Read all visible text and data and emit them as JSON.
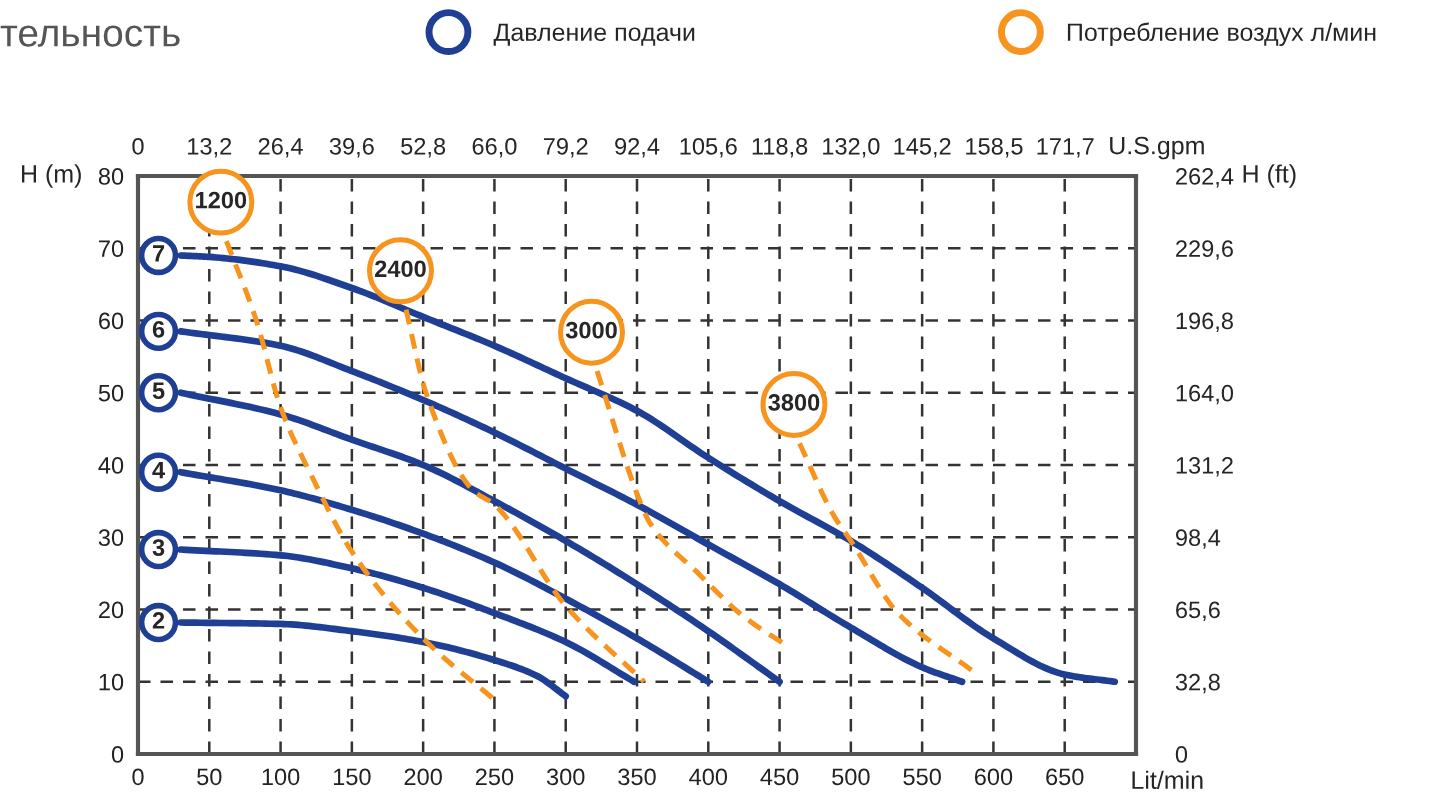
{
  "chart_data": {
    "type": "line",
    "title": "тельность",
    "xlabel": "Lit/min",
    "ylabel": "H (m)",
    "y2label": "H (ft)",
    "x2label": "U.S.gpm",
    "xlim": [
      0,
      700
    ],
    "xticks": [
      0,
      50,
      100,
      150,
      200,
      250,
      300,
      350,
      400,
      450,
      500,
      550,
      600,
      650
    ],
    "ylim": [
      0,
      80
    ],
    "yticks": [
      0,
      10,
      20,
      30,
      40,
      50,
      60,
      70,
      80
    ],
    "x2lim": [
      0,
      184.8
    ],
    "x2ticks": [
      0,
      {
        "value": 13.2,
        "label": "13,2"
      },
      {
        "value": 26.4,
        "label": "26,4"
      },
      {
        "value": 39.6,
        "label": "39,6"
      },
      {
        "value": 52.8,
        "label": "52,8"
      },
      {
        "value": 66.0,
        "label": "66,0"
      },
      {
        "value": 79.2,
        "label": "79,2"
      },
      {
        "value": 92.4,
        "label": "92,4"
      },
      {
        "value": 105.6,
        "label": "105,6"
      },
      {
        "value": 118.8,
        "label": "118,8"
      },
      {
        "value": 132.0,
        "label": "132,0"
      },
      {
        "value": 145.2,
        "label": "145,2"
      },
      {
        "value": 158.5,
        "label": "158,5"
      },
      {
        "value": 171.7,
        "label": "171,7"
      }
    ],
    "y2lim": [
      0,
      262.4
    ],
    "y2ticks": [
      0,
      {
        "value": 32.8,
        "label": "32,8"
      },
      {
        "value": 65.6,
        "label": "65,6"
      },
      {
        "value": 98.4,
        "label": "98,4"
      },
      {
        "value": 131.2,
        "label": "131,2"
      },
      {
        "value": 164.0,
        "label": "164,0"
      },
      {
        "value": 196.8,
        "label": "196,8"
      },
      {
        "value": 229.6,
        "label": "229,6"
      },
      {
        "value": 262.4,
        "label": "262,4"
      }
    ],
    "grid": true,
    "legend": "top",
    "marker": "none",
    "annotations": [
      "Давление подачи",
      "Потребление воздух л/мин"
    ],
    "series": [
      {
        "name": "7",
        "color": "#1f3f94",
        "line_style": "solid",
        "x": [
          30,
          50,
          100,
          150,
          200,
          250,
          300,
          350,
          400,
          450,
          500,
          550,
          600,
          650,
          685
        ],
        "values": [
          69,
          68.8,
          67.5,
          64.5,
          60.5,
          56.5,
          52,
          47.5,
          41,
          35,
          29.5,
          23,
          16,
          11,
          10
        ]
      },
      {
        "name": "6",
        "color": "#1f3f94",
        "line_style": "solid",
        "x": [
          30,
          100,
          150,
          200,
          250,
          300,
          350,
          400,
          450,
          500,
          550,
          578
        ],
        "values": [
          58.5,
          56.5,
          53,
          49,
          44.5,
          39.5,
          34.5,
          29,
          23.5,
          17.5,
          12,
          10
        ]
      },
      {
        "name": "5",
        "color": "#1f3f94",
        "line_style": "solid",
        "x": [
          30,
          100,
          150,
          200,
          250,
          300,
          350,
          400,
          450
        ],
        "values": [
          50,
          47,
          43.5,
          40,
          35,
          29.5,
          23.5,
          17,
          10
        ]
      },
      {
        "name": "4",
        "color": "#1f3f94",
        "line_style": "solid",
        "x": [
          30,
          100,
          150,
          200,
          250,
          300,
          350,
          400
        ],
        "values": [
          39,
          36.5,
          33.8,
          30.5,
          26.5,
          21.5,
          16,
          10
        ]
      },
      {
        "name": "3",
        "color": "#1f3f94",
        "line_style": "solid",
        "x": [
          30,
          100,
          150,
          200,
          250,
          300,
          348
        ],
        "values": [
          28.3,
          27.5,
          25.7,
          23,
          19.5,
          15.5,
          10
        ]
      },
      {
        "name": "2",
        "color": "#1f3f94",
        "line_style": "solid",
        "x": [
          30,
          100,
          150,
          200,
          250,
          280,
          300
        ],
        "values": [
          18.2,
          18,
          17,
          15.5,
          13,
          10.8,
          8
        ]
      },
      {
        "name": "1200",
        "color": "#f7941d",
        "line_style": "dashed",
        "x": [
          62,
          83,
          100,
          123,
          150,
          200,
          250
        ],
        "values": [
          71,
          60,
          48,
          38,
          28,
          16,
          7.5
        ]
      },
      {
        "name": "2400",
        "color": "#f7941d",
        "line_style": "dashed",
        "x": [
          188,
          202,
          235,
          250,
          300,
          355
        ],
        "values": [
          61.5,
          50,
          36.5,
          34.5,
          20.5,
          10
        ]
      },
      {
        "name": "3000",
        "color": "#f7941d",
        "line_style": "dashed",
        "x": [
          322,
          352,
          359,
          393,
          425,
          455
        ],
        "values": [
          53,
          35,
          32,
          25,
          19,
          15
        ]
      },
      {
        "name": "3800",
        "color": "#f7941d",
        "line_style": "dashed",
        "x": [
          464,
          488,
          500,
          533,
          586
        ],
        "values": [
          43,
          33,
          29.5,
          19.5,
          11.4
        ]
      }
    ]
  }
}
